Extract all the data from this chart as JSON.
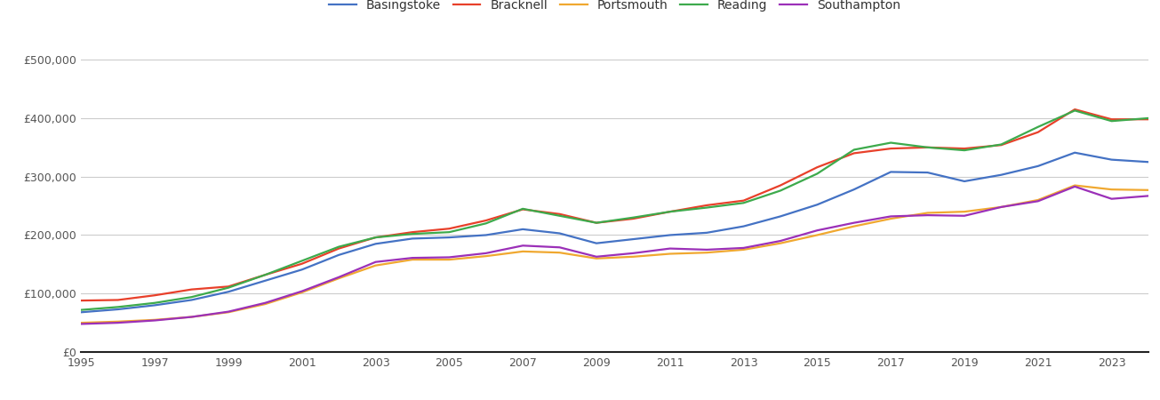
{
  "title": "",
  "cities": [
    "Basingstoke",
    "Bracknell",
    "Portsmouth",
    "Reading",
    "Southampton"
  ],
  "colors": [
    "#4472c4",
    "#e8402a",
    "#f0a830",
    "#3daa4c",
    "#9b30b8"
  ],
  "years": [
    1995,
    1996,
    1997,
    1998,
    1999,
    2000,
    2001,
    2002,
    2003,
    2004,
    2005,
    2006,
    2007,
    2008,
    2009,
    2010,
    2011,
    2012,
    2013,
    2014,
    2015,
    2016,
    2017,
    2018,
    2019,
    2020,
    2021,
    2022,
    2023,
    2024
  ],
  "Basingstoke": [
    68000,
    73000,
    80000,
    89000,
    103000,
    122000,
    141000,
    166000,
    185000,
    194000,
    196000,
    200000,
    210000,
    203000,
    186000,
    193000,
    200000,
    204000,
    215000,
    232000,
    252000,
    278000,
    308000,
    307000,
    292000,
    303000,
    318000,
    341000,
    329000,
    325000
  ],
  "Bracknell": [
    88000,
    89000,
    97000,
    107000,
    112000,
    132000,
    151000,
    177000,
    196000,
    205000,
    211000,
    225000,
    244000,
    236000,
    221000,
    228000,
    240000,
    251000,
    259000,
    285000,
    316000,
    340000,
    348000,
    350000,
    348000,
    354000,
    376000,
    415000,
    398000,
    398000
  ],
  "Portsmouth": [
    50000,
    52000,
    55000,
    60000,
    68000,
    82000,
    102000,
    126000,
    148000,
    158000,
    158000,
    164000,
    172000,
    170000,
    160000,
    163000,
    168000,
    170000,
    175000,
    186000,
    200000,
    215000,
    228000,
    238000,
    240000,
    248000,
    260000,
    285000,
    278000,
    277000
  ],
  "Reading": [
    72000,
    77000,
    84000,
    94000,
    110000,
    132000,
    156000,
    180000,
    196000,
    202000,
    205000,
    220000,
    245000,
    233000,
    221000,
    230000,
    240000,
    247000,
    255000,
    276000,
    305000,
    346000,
    358000,
    350000,
    345000,
    355000,
    385000,
    413000,
    395000,
    400000
  ],
  "Southampton": [
    48000,
    50000,
    54000,
    60000,
    69000,
    84000,
    104000,
    128000,
    154000,
    161000,
    162000,
    169000,
    182000,
    179000,
    163000,
    169000,
    177000,
    175000,
    178000,
    190000,
    208000,
    221000,
    232000,
    234000,
    233000,
    248000,
    258000,
    283000,
    262000,
    267000
  ],
  "ylim": [
    0,
    520000
  ],
  "yticks": [
    0,
    100000,
    200000,
    300000,
    400000,
    500000
  ],
  "background_color": "#ffffff",
  "grid_color": "#cccccc",
  "tick_color": "#555555",
  "legend_ncol": 5,
  "linewidth": 1.6
}
